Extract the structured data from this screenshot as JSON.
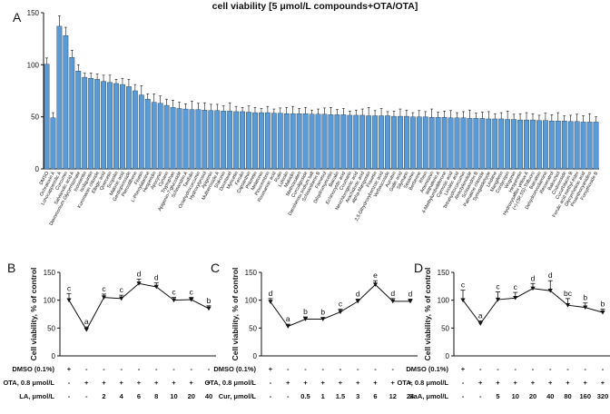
{
  "figure": {
    "title": "cell viability [5 μmol/L compounds+OTA/OTA]",
    "panel_letters": [
      "A",
      "B",
      "C",
      "D"
    ]
  },
  "colors": {
    "bar_fill": "#5b9bd5",
    "bar_stroke": "#1f3b57",
    "line": "#111111"
  },
  "chart_data": [
    {
      "panel": "A",
      "type": "bar",
      "title": "cell viability [5 μmol/L compounds+OTA/OTA]",
      "ylim": [
        0,
        150
      ],
      "yticks": [
        0,
        50,
        100,
        150
      ],
      "categories": [
        "DMSO",
        "Ochratoxin A",
        "Lohocappenolic A",
        "Curcumin",
        "Salvianolic acid A",
        "Diammonium Glycyrrhizinate",
        "Isoorientin",
        "Isoliquiritin",
        "Kuromanin chloride",
        "Ellagic acid",
        "Quercetin",
        "Scopolin",
        "Malonic acid",
        "Gentiopicroside",
        "Pterostilbene",
        "Fisetin",
        "L-Phenylalanine",
        "Hesperidin",
        "Apocynin",
        "Cynarin",
        "Tryptophan",
        "Apigenin-7-glucoside",
        "Schisandrin A",
        "Taxifolin",
        "Octahydrocurcumin",
        "Hydroxytyrosol",
        "Apigenin",
        "Mulberroside A",
        "Shikonin",
        "Docetaxel",
        "Myricetin",
        "Ferulin",
        "Capsanthin",
        "Phloretin",
        "Melatonin",
        "Pinocembrin",
        "Rosmarinic acid",
        "Rutin",
        "Luteolin",
        "Malvidin",
        "Methoxsalen",
        "Curculigoside",
        "Danshensu sodium salt",
        "Schisantherin B",
        "Farnesol",
        "Dihydromyricetin",
        "Baicalin",
        "Echinocystic acid",
        "Coumarin",
        "Neochlorogenic acid",
        "Arachidonic acid",
        "alpha-Mangostin",
        "Fraxetin",
        "2,5-Dihydroxybenzoic acid",
        "Verbascoside",
        "Aucubin",
        "Gallic acid",
        "Silymarin",
        "Sesamin",
        "Berberine",
        "Rhein",
        "Artemisinin",
        "Withaferin A",
        "4-Methylumbelliferone",
        "Carnosic acid",
        "Linoleic acid",
        "Tetrahydrocurcumin",
        "Atractylenolide",
        "Schisandrin B",
        "Palmatine chloride",
        "Syringaldehyde",
        "Lindane",
        "Mangiferin",
        "Cordycepin",
        "Wogonin",
        "Hesperetin",
        "Hydroxysafflor yellow A",
        "(+)-(3R,5S)-Trifluoro",
        "Baicalein",
        "Dehydroevodiamine",
        "Resveratrol",
        "Bakuchiol",
        "Codonoside",
        "Cucurbitacin B",
        "Ferulic acid methyl ester",
        "Glycyrrhetinic acid",
        "Proanthocyanidins",
        "Forsythoside B"
      ],
      "values": [
        100.5,
        49.0,
        137.0,
        128.0,
        107.0,
        94.0,
        88.0,
        87.0,
        86.0,
        84.0,
        83.0,
        82.0,
        81.0,
        79.0,
        75.0,
        71.0,
        67.0,
        64.0,
        63.0,
        61.0,
        59.0,
        58.0,
        57.5,
        57.0,
        57.0,
        56.5,
        56.0,
        56.0,
        55.5,
        55.5,
        55.0,
        55.0,
        54.5,
        54.0,
        54.0,
        54.0,
        53.5,
        53.5,
        53.0,
        53.0,
        53.0,
        53.0,
        52.5,
        52.5,
        52.5,
        52.0,
        52.0,
        52.0,
        51.5,
        51.5,
        51.5,
        51.0,
        51.0,
        51.0,
        51.0,
        50.5,
        50.5,
        50.5,
        50.0,
        50.0,
        50.0,
        49.5,
        49.5,
        49.5,
        49.0,
        49.0,
        49.0,
        48.5,
        48.5,
        48.5,
        48.0,
        48.0,
        48.0,
        47.5,
        47.5,
        47.0,
        47.0,
        47.0,
        46.5,
        46.5,
        46.0,
        46.0,
        46.0,
        45.5,
        45.5,
        45.0,
        45.0,
        45.0
      ],
      "errors": [
        6,
        5,
        10,
        8,
        7,
        6,
        4,
        5,
        5,
        6,
        7,
        4,
        6,
        7,
        6,
        9,
        5,
        8,
        7,
        6,
        7,
        6,
        5,
        8,
        6,
        7,
        6,
        6,
        5,
        8,
        5,
        4,
        6,
        5,
        4,
        6,
        4,
        5,
        6,
        7,
        5,
        6,
        4,
        5,
        6,
        7,
        5,
        6,
        4,
        5,
        6,
        8,
        5,
        7,
        4,
        5,
        7,
        6,
        4,
        6,
        5,
        8,
        5,
        6,
        7,
        5,
        6,
        8,
        5,
        6,
        7,
        5,
        6,
        8,
        5,
        6,
        7,
        6,
        5,
        7,
        6,
        8,
        5,
        6,
        7,
        6,
        8,
        5
      ]
    },
    {
      "panel": "B",
      "type": "line",
      "ylabel": "Cell viability, % of control",
      "ylim": [
        0,
        150
      ],
      "yticks": [
        0,
        50,
        100,
        150
      ],
      "values": [
        100,
        47,
        105,
        103,
        130,
        124,
        100,
        101,
        85
      ],
      "errors": [
        12,
        5,
        6,
        6,
        8,
        7,
        5,
        4,
        5
      ],
      "letters": [
        "c",
        "a",
        "c",
        "c",
        "d",
        "d",
        "c",
        "c",
        "b"
      ],
      "treatment_rows": [
        {
          "label": "DMSO (0.1%)",
          "marks": [
            "+",
            "-",
            "-",
            "-",
            "-",
            "-",
            "-",
            "-",
            "-"
          ]
        },
        {
          "label": "OTA, 0.8 μmol/L",
          "marks": [
            "-",
            "+",
            "+",
            "+",
            "+",
            "+",
            "+",
            "+",
            "+"
          ]
        },
        {
          "label": "LA, μmol/L",
          "marks": [
            "-",
            "-",
            "2",
            "4",
            "6",
            "8",
            "10",
            "20",
            "40"
          ]
        }
      ]
    },
    {
      "panel": "C",
      "type": "line",
      "ylabel": "Cell viability, % of control",
      "ylim": [
        0,
        150
      ],
      "yticks": [
        0,
        50,
        100,
        150
      ],
      "values": [
        97,
        53,
        66,
        66,
        79,
        98,
        128,
        98,
        98
      ],
      "errors": [
        6,
        4,
        4,
        3,
        5,
        4,
        7,
        5,
        4
      ],
      "letters": [
        "d",
        "a",
        "b",
        "b",
        "c",
        "d",
        "e",
        "d",
        "d"
      ],
      "treatment_rows": [
        {
          "label": "DMSO (0.1%)",
          "marks": [
            "+",
            "-",
            "-",
            "-",
            "-",
            "-",
            "-",
            "-",
            "-"
          ]
        },
        {
          "label": "OTA, 0.8 μmol/L",
          "marks": [
            "-",
            "+",
            "+",
            "+",
            "+",
            "+",
            "+",
            "+",
            "+"
          ]
        },
        {
          "label": "Cur, μmol/L",
          "marks": [
            "-",
            "-",
            "0.5",
            "1",
            "1.5",
            "3",
            "6",
            "12",
            "24"
          ]
        }
      ]
    },
    {
      "panel": "D",
      "type": "line",
      "ylabel": "Cell viability, % of control",
      "ylim": [
        0,
        150
      ],
      "yticks": [
        0,
        50,
        100,
        150
      ],
      "values": [
        100,
        58,
        101,
        104,
        121,
        117,
        91,
        87,
        78
      ],
      "errors": [
        18,
        5,
        14,
        10,
        9,
        18,
        12,
        8,
        6
      ],
      "letters": [
        "c",
        "a",
        "c",
        "c",
        "d",
        "d",
        "bc",
        "b",
        "b"
      ],
      "treatment_rows": [
        {
          "label": "DMSO (0.1%)",
          "marks": [
            "+",
            "-",
            "-",
            "-",
            "-",
            "-",
            "-",
            "-",
            "-"
          ]
        },
        {
          "label": "OTA, 0.8 μmol/L",
          "marks": [
            "-",
            "+",
            "+",
            "+",
            "+",
            "+",
            "+",
            "+",
            "+"
          ]
        },
        {
          "label": "SaA, μmol/L",
          "marks": [
            "-",
            "-",
            "5",
            "10",
            "20",
            "40",
            "80",
            "160",
            "320"
          ]
        }
      ]
    }
  ]
}
